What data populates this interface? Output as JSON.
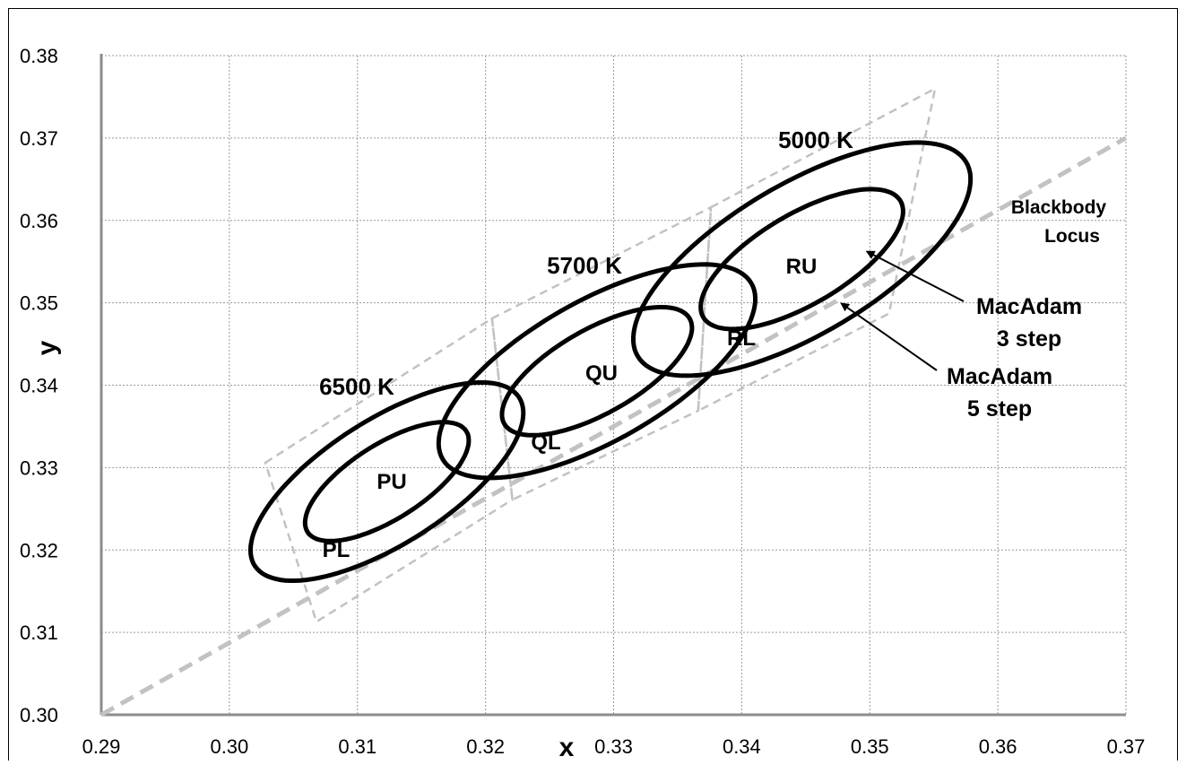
{
  "chart_data": {
    "type": "scatter",
    "title": "",
    "xlabel": "x",
    "ylabel": "y",
    "xlim": [
      0.29,
      0.37
    ],
    "ylim": [
      0.3,
      0.38
    ],
    "grid": true,
    "x_ticks": [
      "0.29",
      "0.30",
      "0.31",
      "0.32",
      "0.33",
      "0.34",
      "0.35",
      "0.36",
      "0.37"
    ],
    "y_ticks": [
      "0.30",
      "0.31",
      "0.32",
      "0.33",
      "0.34",
      "0.35",
      "0.36",
      "0.37",
      "0.38"
    ],
    "colors": {
      "ellipse": "#000000",
      "dashed": "#c2c2c2",
      "grid": "#9a9a9a"
    },
    "blackbody_locus": {
      "label_lines": [
        "Blackbody",
        "Locus"
      ],
      "points": [
        [
          0.29,
          0.3
        ],
        [
          0.37,
          0.37
        ]
      ]
    },
    "quadrangles": [
      {
        "name": "6500 K",
        "points": [
          [
            0.3028,
            0.3306
          ],
          [
            0.3205,
            0.3481
          ],
          [
            0.3221,
            0.3261
          ],
          [
            0.3068,
            0.3113
          ]
        ]
      },
      {
        "name": "5700 K",
        "points": [
          [
            0.3205,
            0.3481
          ],
          [
            0.3376,
            0.3616
          ],
          [
            0.3366,
            0.3369
          ],
          [
            0.3221,
            0.3261
          ]
        ]
      },
      {
        "name": "5000 K",
        "points": [
          [
            0.3376,
            0.3616
          ],
          [
            0.3551,
            0.376
          ],
          [
            0.3515,
            0.3487
          ],
          [
            0.3366,
            0.3369
          ]
        ]
      }
    ],
    "ellipse_groups": [
      {
        "label": "6500 K",
        "center": [
          0.3123,
          0.3283
        ],
        "outer": {
          "semi_major": 0.0148,
          "semi_minor": 0.00625,
          "angle_deg": 50
        },
        "inner": {
          "semi_major": 0.00888,
          "semi_minor": 0.00375,
          "angle_deg": 50
        },
        "upper_label": "PU",
        "lower_label": "PL"
      },
      {
        "label": "5700 K",
        "center": [
          0.3287,
          0.3417
        ],
        "outer": {
          "semi_major": 0.0164,
          "semi_minor": 0.0072,
          "angle_deg": 47
        },
        "inner": {
          "semi_major": 0.00984,
          "semi_minor": 0.00432,
          "angle_deg": 47
        },
        "upper_label": "QU",
        "lower_label": "QL"
      },
      {
        "label": "5000 K",
        "center": [
          0.3447,
          0.3553
        ],
        "outer": {
          "semi_major": 0.01775,
          "semi_minor": 0.00765,
          "angle_deg": 48
        },
        "inner": {
          "semi_major": 0.01065,
          "semi_minor": 0.00459,
          "angle_deg": 48
        },
        "upper_label": "RU",
        "lower_label": "RL"
      }
    ],
    "annotations": [
      {
        "text_lines": [
          "MacAdam",
          "3 step"
        ],
        "arrow_to": [
          0.3498,
          0.3562
        ]
      },
      {
        "text_lines": [
          "MacAdam",
          "5 step"
        ],
        "arrow_to": [
          0.3478,
          0.3499
        ]
      }
    ]
  }
}
